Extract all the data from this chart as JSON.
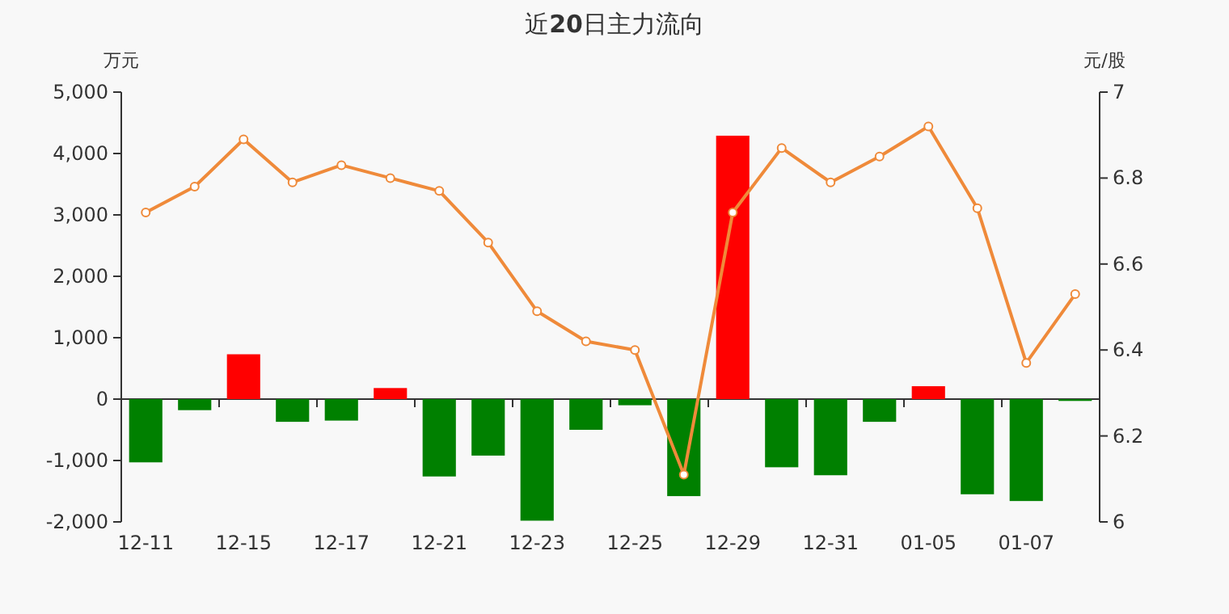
{
  "chart_data": {
    "type": "bar",
    "title": "近**20**日主力流向",
    "ylabel": "万元",
    "y2label": "元/股",
    "categories": [
      "12-11",
      null,
      "12-15",
      null,
      "12-17",
      null,
      "12-21",
      null,
      "12-23",
      null,
      "12-25",
      null,
      "12-29",
      null,
      "12-31",
      null,
      "01-05",
      null,
      "01-07",
      null
    ],
    "series": [
      {
        "colors": [
          "#008000",
          "#008000",
          "#ff0000",
          "#008000",
          "#008000",
          "#ff0000",
          "#008000",
          "#008000",
          "#008000",
          "#008000",
          "#008000",
          "#008000",
          "#ff0000",
          "#008000",
          "#008000",
          "#008000",
          "#ff0000",
          "#008000",
          "#008000",
          "#008000"
        ],
        "values": [
          -1030,
          -180,
          730,
          -370,
          -350,
          180,
          -1260,
          -920,
          -1980,
          -500,
          -100,
          -1580,
          4290,
          -1110,
          -1240,
          -370,
          210,
          -1550,
          -1660,
          -30
        ]
      },
      {
        "type": "line",
        "axis": "y2",
        "color": "#ef8a3a",
        "marker": "circle",
        "values": [
          6.72,
          6.78,
          6.89,
          6.79,
          6.83,
          6.8,
          6.77,
          6.65,
          6.49,
          6.42,
          6.4,
          6.11,
          6.72,
          6.87,
          6.79,
          6.85,
          6.92,
          6.73,
          6.37,
          6.53
        ]
      }
    ],
    "ylim": [
      -2000,
      5000
    ],
    "yticks": [
      {
        "value": -2000,
        "label": "-2,000"
      },
      {
        "value": -1000,
        "label": "-1,000"
      },
      0,
      {
        "value": 1000,
        "label": "1,000"
      },
      {
        "value": 2000,
        "label": "2,000"
      },
      {
        "value": 3000,
        "label": "3,000"
      },
      {
        "value": 4000,
        "label": "4,000"
      },
      {
        "value": 5000,
        "label": "5,000"
      }
    ],
    "y2lim": [
      6,
      7
    ],
    "y2ticks": [
      6,
      6.2,
      6.4,
      6.6,
      6.8,
      7
    ]
  }
}
